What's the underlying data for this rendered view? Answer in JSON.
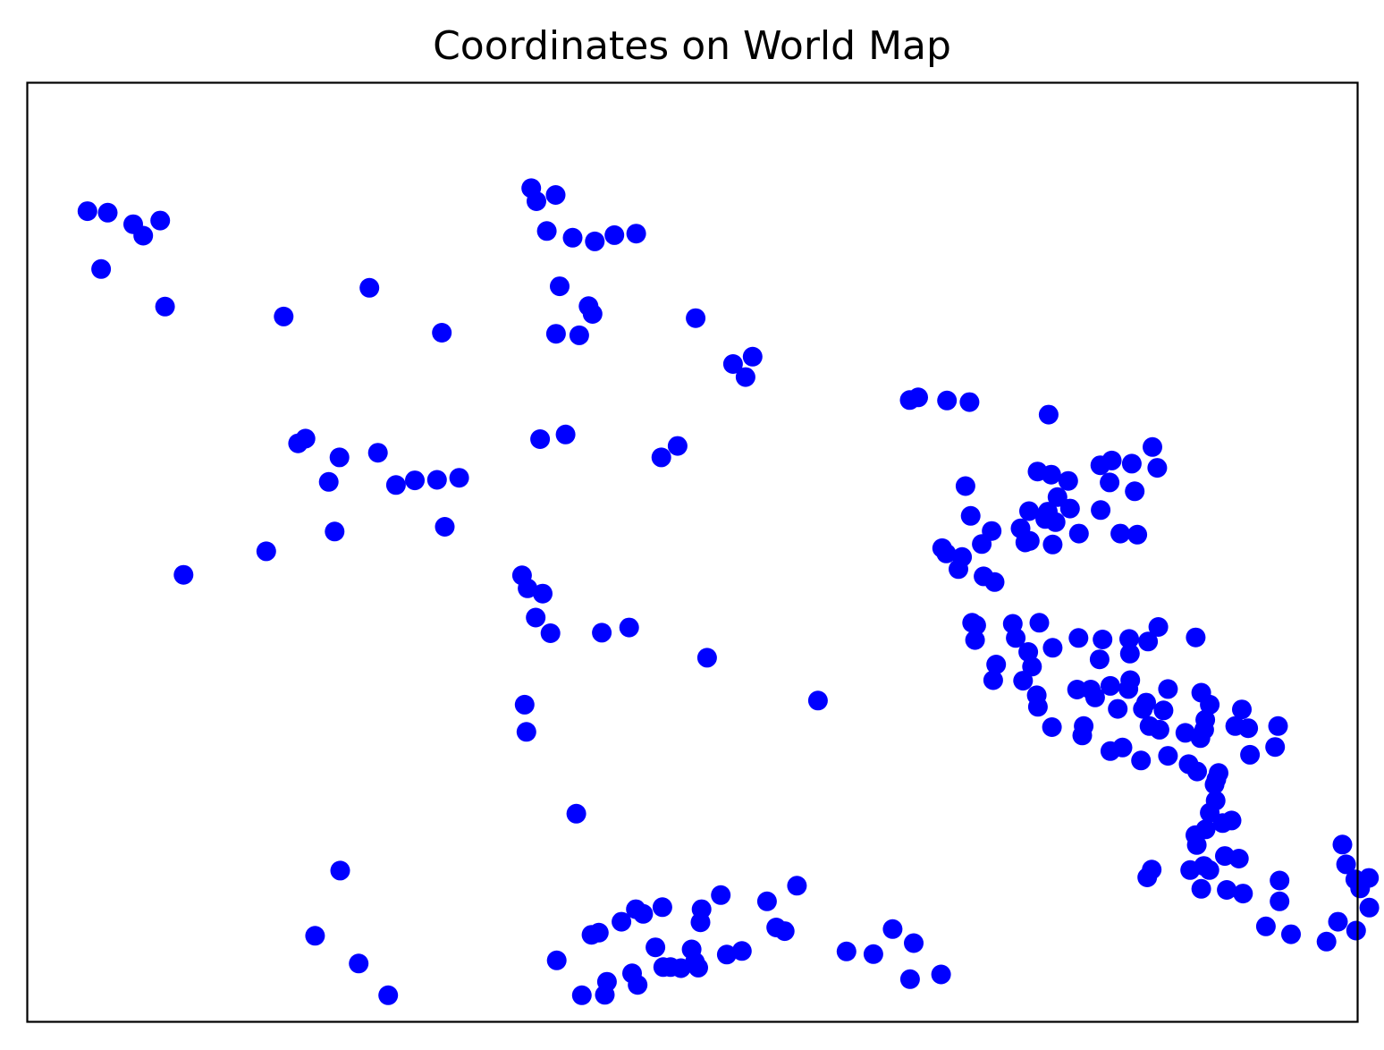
{
  "chart_data": {
    "type": "scatter",
    "title": "Coordinates on World Map",
    "xlabel": "",
    "ylabel": "",
    "xticks": [],
    "yticks": [],
    "grid": false,
    "marker_color": "#0000ff",
    "frame_color": "#000000",
    "xlim": [
      -180,
      180
    ],
    "ylim": [
      -90,
      90
    ],
    "points": [
      [
        -163.6,
        65.3
      ],
      [
        -158.1,
        65.0
      ],
      [
        -151.2,
        62.8
      ],
      [
        -148.5,
        60.6
      ],
      [
        -143.9,
        63.5
      ],
      [
        -159.9,
        54.2
      ],
      [
        -142.6,
        47.0
      ],
      [
        -110.5,
        45.1
      ],
      [
        -87.3,
        50.6
      ],
      [
        -67.7,
        42.0
      ],
      [
        -43.5,
        69.7
      ],
      [
        -42.1,
        67.2
      ],
      [
        -36.9,
        68.4
      ],
      [
        -39.3,
        61.5
      ],
      [
        -32.3,
        60.2
      ],
      [
        -26.3,
        59.5
      ],
      [
        -21.0,
        60.7
      ],
      [
        -15.1,
        61.0
      ],
      [
        -35.8,
        50.9
      ],
      [
        -28.0,
        47.1
      ],
      [
        -26.9,
        45.6
      ],
      [
        -36.8,
        41.8
      ],
      [
        -30.5,
        41.5
      ],
      [
        1.0,
        44.8
      ],
      [
        11.1,
        36.0
      ],
      [
        16.4,
        37.4
      ],
      [
        14.5,
        33.5
      ],
      [
        -3.9,
        20.3
      ],
      [
        -8.3,
        18.1
      ],
      [
        -34.2,
        22.5
      ],
      [
        -41.1,
        21.6
      ],
      [
        -95.4,
        18.1
      ],
      [
        -104.6,
        21.7
      ],
      [
        -106.6,
        20.8
      ],
      [
        -85.0,
        19.0
      ],
      [
        -98.3,
        13.4
      ],
      [
        -80.1,
        12.8
      ],
      [
        -75.0,
        13.7
      ],
      [
        -69.0,
        13.8
      ],
      [
        -63.0,
        14.2
      ],
      [
        -96.7,
        3.9
      ],
      [
        -66.9,
        4.8
      ],
      [
        -115.2,
        0.1
      ],
      [
        -137.6,
        -4.4
      ],
      [
        -46.0,
        -4.5
      ],
      [
        -44.5,
        -7.0
      ],
      [
        -40.4,
        -8.0
      ],
      [
        -42.3,
        -12.6
      ],
      [
        -38.3,
        -15.6
      ],
      [
        -24.4,
        -15.5
      ],
      [
        -17.0,
        -14.5
      ],
      [
        -45.3,
        -29.3
      ],
      [
        -44.8,
        -34.5
      ],
      [
        4.1,
        -20.3
      ],
      [
        34.1,
        -28.5
      ],
      [
        -31.3,
        -50.2
      ],
      [
        -95.2,
        -61.1
      ],
      [
        -102.0,
        -73.6
      ],
      [
        -90.2,
        -78.9
      ],
      [
        -82.2,
        -85.0
      ],
      [
        -36.6,
        -78.3
      ],
      [
        -27.2,
        -73.4
      ],
      [
        -25.2,
        -73.0
      ],
      [
        -19.1,
        -70.9
      ],
      [
        -15.2,
        -68.5
      ],
      [
        -8.0,
        -68.1
      ],
      [
        -13.2,
        -69.4
      ],
      [
        -23.6,
        -84.9
      ],
      [
        -29.8,
        -85.0
      ],
      [
        -23.0,
        -82.4
      ],
      [
        -14.7,
        -83.0
      ],
      [
        -16.2,
        -80.8
      ],
      [
        -9.9,
        -75.8
      ],
      [
        -7.8,
        -79.6
      ],
      [
        -5.8,
        -79.6
      ],
      [
        -3.0,
        -79.8
      ],
      [
        1.7,
        -79.7
      ],
      [
        -0.1,
        -76.2
      ],
      [
        0.8,
        -78.6
      ],
      [
        2.3,
        -71.0
      ],
      [
        2.6,
        -68.5
      ],
      [
        7.8,
        -65.8
      ],
      [
        9.4,
        -77.2
      ],
      [
        13.5,
        -76.5
      ],
      [
        20.3,
        -67.0
      ],
      [
        22.8,
        -72.0
      ],
      [
        25.1,
        -72.7
      ],
      [
        28.4,
        -64.0
      ],
      [
        41.8,
        -76.6
      ],
      [
        49.1,
        -77.1
      ],
      [
        54.3,
        -72.3
      ],
      [
        60.0,
        -75.0
      ],
      [
        67.4,
        -81.0
      ],
      [
        59.0,
        -81.9
      ],
      [
        58.9,
        29.1
      ],
      [
        61.2,
        29.6
      ],
      [
        69.0,
        29.0
      ],
      [
        75.1,
        28.7
      ],
      [
        96.5,
        26.3
      ],
      [
        124.6,
        20.1
      ],
      [
        113.6,
        17.5
      ],
      [
        110.5,
        16.6
      ],
      [
        119.0,
        16.9
      ],
      [
        125.9,
        16.1
      ],
      [
        93.5,
        15.4
      ],
      [
        97.2,
        14.8
      ],
      [
        101.8,
        13.6
      ],
      [
        113.0,
        13.3
      ],
      [
        119.8,
        11.6
      ],
      [
        98.9,
        10.5
      ],
      [
        96.3,
        7.7
      ],
      [
        95.6,
        6.3
      ],
      [
        98.4,
        5.7
      ],
      [
        88.9,
        4.5
      ],
      [
        115.9,
        3.5
      ],
      [
        120.5,
        3.3
      ],
      [
        104.7,
        3.5
      ],
      [
        74.0,
        12.6
      ],
      [
        75.4,
        6.9
      ],
      [
        91.2,
        7.8
      ],
      [
        102.3,
        8.3
      ],
      [
        110.6,
        8.0
      ],
      [
        90.2,
        1.8
      ],
      [
        91.4,
        2.1
      ],
      [
        67.7,
        0.7
      ],
      [
        78.4,
        1.5
      ],
      [
        97.6,
        1.4
      ],
      [
        81.1,
        4.0
      ],
      [
        68.8,
        -0.3
      ],
      [
        73.1,
        -1.0
      ],
      [
        78.9,
        -4.7
      ],
      [
        81.9,
        -5.8
      ],
      [
        72.1,
        -3.3
      ],
      [
        75.8,
        -13.6
      ],
      [
        76.6,
        -16.9
      ],
      [
        76.9,
        -14.1
      ],
      [
        94.0,
        -13.6
      ],
      [
        86.8,
        -13.8
      ],
      [
        87.6,
        -16.5
      ],
      [
        82.3,
        -21.6
      ],
      [
        81.5,
        -24.6
      ],
      [
        91.0,
        -19.2
      ],
      [
        92.0,
        -22.0
      ],
      [
        97.6,
        -18.4
      ],
      [
        110.3,
        -20.6
      ],
      [
        111.1,
        -16.8
      ],
      [
        104.6,
        -16.5
      ],
      [
        118.3,
        -16.7
      ],
      [
        126.2,
        -14.4
      ],
      [
        123.4,
        -17.2
      ],
      [
        118.6,
        -24.6
      ],
      [
        118.5,
        -19.5
      ],
      [
        93.3,
        -27.5
      ],
      [
        89.6,
        -24.7
      ],
      [
        93.6,
        -29.7
      ],
      [
        104.2,
        -26.4
      ],
      [
        107.9,
        -26.4
      ],
      [
        113.2,
        -25.7
      ],
      [
        122.9,
        -28.9
      ],
      [
        109.1,
        -27.9
      ],
      [
        136.3,
        -16.4
      ],
      [
        122.0,
        -30.1
      ],
      [
        115.2,
        -30.1
      ],
      [
        126.5,
        -34.1
      ],
      [
        118.1,
        -26.3
      ],
      [
        97.4,
        -33.6
      ],
      [
        106.0,
        -33.4
      ],
      [
        105.6,
        -35.2
      ],
      [
        116.5,
        -37.5
      ],
      [
        121.5,
        -40.0
      ],
      [
        133.5,
        -34.7
      ],
      [
        138.6,
        -34.1
      ],
      [
        150.5,
        -33.8
      ],
      [
        138.9,
        -32.2
      ],
      [
        137.6,
        -35.7
      ],
      [
        137.8,
        -27.0
      ],
      [
        128.8,
        -26.3
      ],
      [
        123.8,
        -33.4
      ],
      [
        127.6,
        -30.4
      ],
      [
        140.1,
        -29.3
      ],
      [
        148.8,
        -30.2
      ],
      [
        147.0,
        -33.4
      ],
      [
        158.6,
        -33.4
      ],
      [
        157.8,
        -37.4
      ],
      [
        151.0,
        -38.9
      ],
      [
        141.9,
        -43.6
      ],
      [
        134.4,
        -40.7
      ],
      [
        113.2,
        -38.2
      ],
      [
        128.8,
        -39.1
      ],
      [
        136.7,
        -42.1
      ],
      [
        142.5,
        -42.4
      ],
      [
        141.4,
        -44.6
      ],
      [
        141.7,
        -47.7
      ],
      [
        140.1,
        -50.0
      ],
      [
        146.0,
        -51.5
      ],
      [
        143.6,
        -52.0
      ],
      [
        139.0,
        -53.2
      ],
      [
        136.2,
        -54.3
      ],
      [
        136.6,
        -56.2
      ],
      [
        134.8,
        -61.0
      ],
      [
        138.5,
        -60.2
      ],
      [
        144.2,
        -58.3
      ],
      [
        148.0,
        -58.8
      ],
      [
        140.0,
        -61.0
      ],
      [
        159.0,
        -63.0
      ],
      [
        144.7,
        -64.8
      ],
      [
        124.4,
        -60.9
      ],
      [
        123.2,
        -62.4
      ],
      [
        137.8,
        -64.6
      ],
      [
        149.1,
        -65.5
      ],
      [
        159.0,
        -67.0
      ],
      [
        155.3,
        -71.8
      ],
      [
        162.1,
        -73.3
      ],
      [
        171.7,
        -74.7
      ],
      [
        179.7,
        -72.6
      ],
      [
        183.3,
        -68.2
      ],
      [
        183.2,
        -62.5
      ],
      [
        180.8,
        -64.5
      ],
      [
        179.5,
        -62.8
      ],
      [
        174.8,
        -70.9
      ],
      [
        177.0,
        -59.9
      ],
      [
        176.0,
        -56.1
      ]
    ]
  }
}
